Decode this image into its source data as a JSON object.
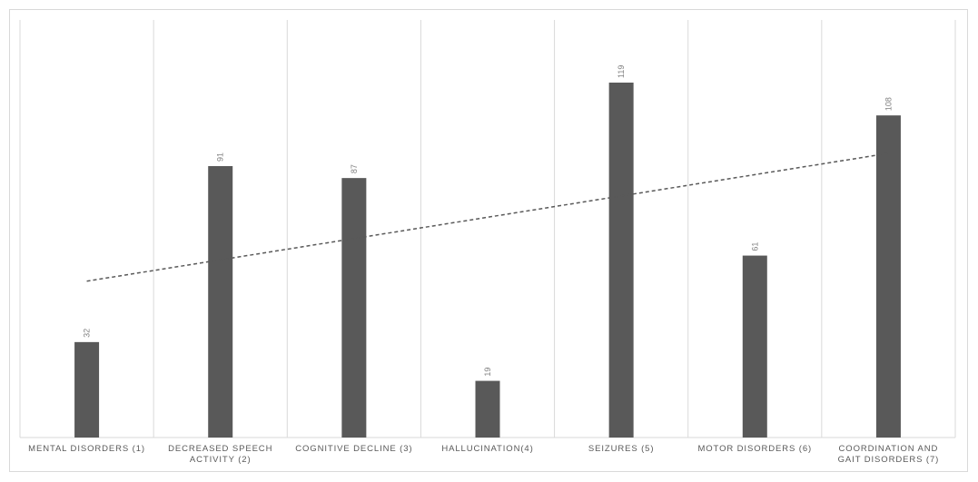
{
  "chart_data": {
    "type": "bar",
    "categories": [
      "MENTAL DISORDERS (1)",
      "DECREASED SPEECH ACTIVITY (2)",
      "COGNITIVE DECLINE (3)",
      "HALLUCINATION(4)",
      "SEIZURES (5)",
      "MOTOR DISORDERS (6)",
      "COORDINATION AND GAIT DISORDERS (7)"
    ],
    "values": [
      32,
      91,
      87,
      19,
      119,
      61,
      108
    ],
    "color": "#595959",
    "ylim": [
      0,
      140
    ],
    "grid": true,
    "trendline": true
  }
}
